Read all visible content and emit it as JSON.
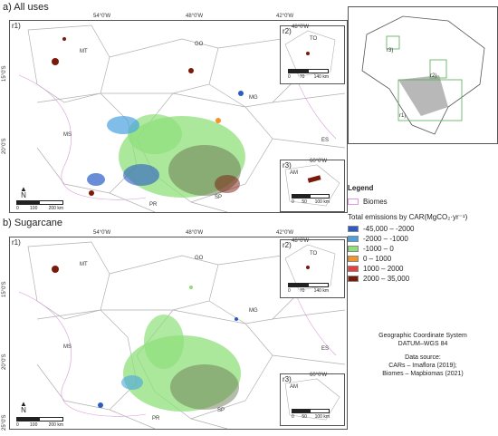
{
  "panels": [
    {
      "id": "a",
      "title": "a) All uses"
    },
    {
      "id": "b",
      "title": "b) Sugarcane"
    }
  ],
  "coords": {
    "top": [
      "54°0'W",
      "48°0'W",
      "42°0'W"
    ],
    "left": [
      "15°0'S",
      "20°0'S",
      "25°0'S"
    ],
    "r2_top": "48°0'W",
    "r3_top": "60°0'W"
  },
  "regions": {
    "r1": [
      "MT",
      "GO",
      "MG",
      "MS",
      "ES",
      "SP",
      "PR"
    ],
    "r2": "TO",
    "r3": "AM"
  },
  "sublabels": {
    "r1": "r1)",
    "r2": "r2)",
    "r3": "r3)"
  },
  "scales": {
    "r1": [
      "0",
      "100",
      "200 km"
    ],
    "r2": [
      "0",
      "70",
      "140 km"
    ],
    "r3": [
      "0",
      "50",
      "100 km"
    ]
  },
  "north": {
    "symbol": "▲",
    "letter": "N"
  },
  "overview_labels": [
    "r3)",
    "r2)",
    "r1)"
  ],
  "legend": {
    "title": "Legend",
    "biomes_label": "Biomes",
    "emissions_title": "Total emissions by CAR(MgCO₂·yr⁻¹)",
    "classes": [
      {
        "label": "-45,000 – -2000",
        "color": "#2a5cc4"
      },
      {
        "label": "-2000 – -1000",
        "color": "#4aa3e0"
      },
      {
        "label": "-1000 – 0",
        "color": "#8fe07a"
      },
      {
        "label": "0 – 1000",
        "color": "#f5922a"
      },
      {
        "label": "1000 – 2000",
        "color": "#e83e3e"
      },
      {
        "label": "2000 – 35,000",
        "color": "#7a1a0a"
      }
    ]
  },
  "info": {
    "crs_1": "Geographic Coordinate System",
    "crs_2": "DATUM–WGS 84",
    "source_title": "Data source:",
    "source_1": "CARs – Imaflora (2019);",
    "source_2": "Biomes – Mapbiomas (2021)"
  }
}
